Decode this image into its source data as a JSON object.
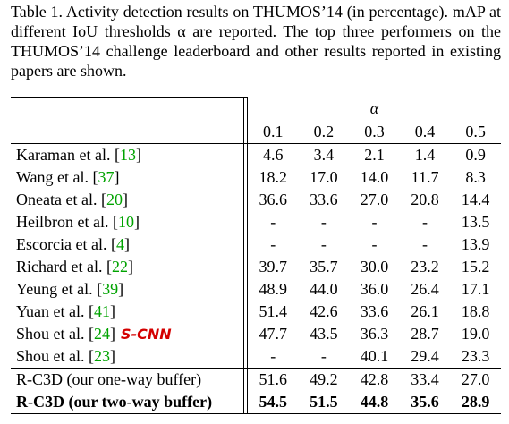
{
  "caption": "Table 1. Activity detection results on THUMOS’14 (in percentage). mAP at different IoU thresholds α are reported. The top three performers on the THUMOS’14 challenge leaderboard and other results reported in existing papers are shown.",
  "table": {
    "alpha_label": "α",
    "thresholds": [
      "0.1",
      "0.2",
      "0.3",
      "0.4",
      "0.5"
    ],
    "rows": [
      {
        "name": "Karaman et al. [",
        "cite": "13",
        "close": "]",
        "values": [
          "4.6",
          "3.4",
          "2.1",
          "1.4",
          "0.9"
        ]
      },
      {
        "name": "Wang et al. [",
        "cite": "37",
        "close": "]",
        "values": [
          "18.2",
          "17.0",
          "14.0",
          "11.7",
          "8.3"
        ]
      },
      {
        "name": "Oneata et al. [",
        "cite": "20",
        "close": "]",
        "values": [
          "36.6",
          "33.6",
          "27.0",
          "20.8",
          "14.4"
        ]
      },
      {
        "name": "Heilbron et al. [",
        "cite": "10",
        "close": "]",
        "values": [
          "-",
          "-",
          "-",
          "-",
          "13.5"
        ]
      },
      {
        "name": "Escorcia et al. [",
        "cite": "4",
        "close": "]",
        "values": [
          "-",
          "-",
          "-",
          "-",
          "13.9"
        ]
      },
      {
        "name": "Richard et al. [",
        "cite": "22",
        "close": "]",
        "values": [
          "39.7",
          "35.7",
          "30.0",
          "23.2",
          "15.2"
        ]
      },
      {
        "name": "Yeung et al. [",
        "cite": "39",
        "close": "]",
        "values": [
          "48.9",
          "44.0",
          "36.0",
          "26.4",
          "17.1"
        ]
      },
      {
        "name": "Yuan et al. [",
        "cite": "41",
        "close": "]",
        "values": [
          "51.4",
          "42.6",
          "33.6",
          "26.1",
          "18.8"
        ]
      },
      {
        "name": "Shou et al. [",
        "cite": "24",
        "close": "]",
        "annotation": "S-CNN",
        "values": [
          "47.7",
          "43.5",
          "36.3",
          "28.7",
          "19.0"
        ]
      },
      {
        "name": "Shou et al. [",
        "cite": "23",
        "close": "]",
        "values": [
          "-",
          "-",
          "40.1",
          "29.4",
          "23.3"
        ]
      }
    ],
    "ours": [
      {
        "name": "R-C3D (our one-way buffer)",
        "values": [
          "51.6",
          "49.2",
          "42.8",
          "33.4",
          "27.0"
        ],
        "bold": false
      },
      {
        "name": "R-C3D (our two-way buffer)",
        "values": [
          "54.5",
          "51.5",
          "44.8",
          "35.6",
          "28.9"
        ],
        "bold": true
      }
    ],
    "colors": {
      "citation": "#00a300",
      "annotation": "#d40000"
    }
  }
}
